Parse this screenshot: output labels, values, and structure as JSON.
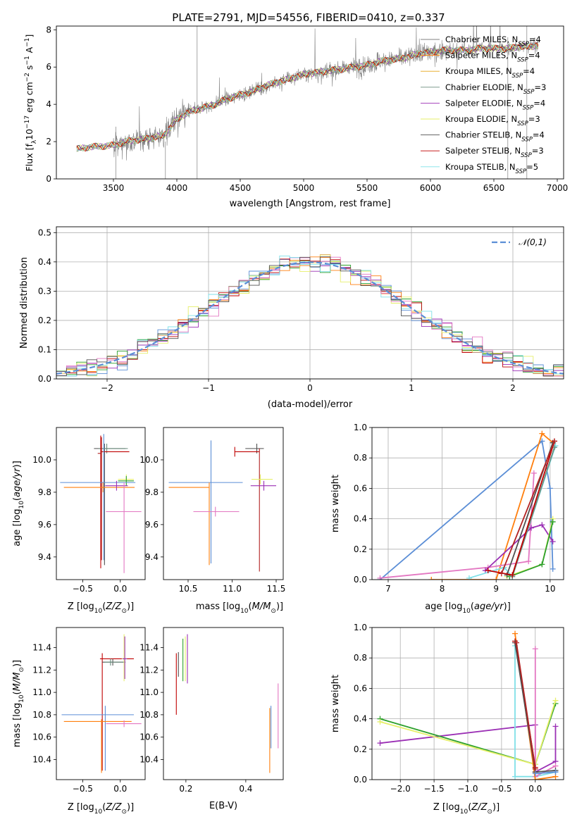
{
  "figure": {
    "title": "PLATE=2791, MJD=54556, FIBERID=0410, z=0.337"
  },
  "colors": {
    "grid": "#b0b0b0",
    "gray_spectrum": "#808080",
    "models": [
      "#808080",
      "#ff7f0e",
      "#e8a317",
      "#6b8e7f",
      "#9b30b5",
      "#e6ef6a",
      "#505050",
      "#c00000",
      "#7fe0e8",
      "#6a8fd8",
      "#e377c2",
      "#dd6a1a",
      "#b22222",
      "#2ca02c",
      "#bcbd22"
    ]
  },
  "chart_data": [
    {
      "id": "spectrum",
      "type": "line",
      "xlabel": "wavelength [Angstrom, rest frame]",
      "ylabel": "Flux [f_λ10^-17 erg cm^-2 s^-1 A^-1]",
      "xlim": [
        3050,
        7050
      ],
      "ylim": [
        0,
        8.2
      ],
      "xticks": [
        3500,
        4000,
        4500,
        5000,
        5500,
        6000,
        6500,
        7000
      ],
      "yticks": [
        0,
        2,
        4,
        6,
        8
      ],
      "grid": false,
      "legend_position": "upper-right",
      "legend": [
        {
          "label": "Chabrier MILES, N_SSP=4",
          "color": "#808080"
        },
        {
          "label": "Salpeter MILES, N_SSP=4",
          "color": "#ff7f0e"
        },
        {
          "label": "Kroupa MILES, N_SSP=4",
          "color": "#e8a317"
        },
        {
          "label": "Chabrier ELODIE, N_SSP=3",
          "color": "#6b8e7f"
        },
        {
          "label": "Salpeter ELODIE, N_SSP=4",
          "color": "#9b30b5"
        },
        {
          "label": "Kroupa ELODIE, N_SSP=3",
          "color": "#e6ef6a"
        },
        {
          "label": "Chabrier STELIB, N_SSP=4",
          "color": "#505050"
        },
        {
          "label": "Salpeter STELIB, N_SSP=3",
          "color": "#c00000"
        },
        {
          "label": "Kroupa STELIB, N_SSP=5",
          "color": "#7fe0e8"
        }
      ],
      "continuum": {
        "x": [
          3210,
          3300,
          3400,
          3500,
          3600,
          3700,
          3800,
          3900,
          4000,
          4100,
          4200,
          4300,
          4400,
          4500,
          4600,
          4700,
          4800,
          4900,
          5000,
          5100,
          5200,
          5300,
          5400,
          5500,
          5600,
          5700,
          5800,
          5900,
          6000,
          6100,
          6200,
          6300,
          6400,
          6500,
          6600,
          6700,
          6800,
          6850
        ],
        "y": [
          1.6,
          1.7,
          1.75,
          1.8,
          2.0,
          2.1,
          2.2,
          2.35,
          3.2,
          3.6,
          3.8,
          4.0,
          4.3,
          4.5,
          4.7,
          5.0,
          5.2,
          5.4,
          5.6,
          5.7,
          5.8,
          5.9,
          6.0,
          6.1,
          6.3,
          6.4,
          6.5,
          6.7,
          6.8,
          6.9,
          6.9,
          6.9,
          7.0,
          7.0,
          7.0,
          7.1,
          7.1,
          7.2
        ]
      }
    },
    {
      "id": "residuals",
      "type": "line",
      "xlabel": "(data-model)/error",
      "ylabel": "Normed distribution",
      "xlim": [
        -2.5,
        2.5
      ],
      "ylim": [
        0,
        0.52
      ],
      "xticks": [
        -2,
        -1,
        0,
        1,
        2
      ],
      "yticks": [
        0.0,
        0.1,
        0.2,
        0.3,
        0.4,
        0.5
      ],
      "grid": true,
      "legend_position": "upper-right",
      "legend": [
        {
          "label": "𝒩(0,1)",
          "color": "#5b8ed6"
        }
      ],
      "bin_width": 0.1
    },
    {
      "id": "age-vs-Z",
      "type": "scatter",
      "xlabel": "Z [log10(Z/Z☉)]",
      "ylabel": "age [log10(age/yr)]",
      "xlim": [
        -0.85,
        0.33
      ],
      "ylim": [
        9.26,
        10.2
      ],
      "xticks": [
        -0.5,
        0.0
      ],
      "yticks": [
        9.4,
        9.6,
        9.8,
        10.0
      ],
      "grid": false,
      "points": [
        {
          "x": -0.21,
          "y": 10.07,
          "xlo": 0.14,
          "xhi": 0.28,
          "ylo": 0.72,
          "yhi": 0.03,
          "c": "#505050"
        },
        {
          "x": -0.18,
          "y": 10.07,
          "xlo": 0.11,
          "xhi": 0.28,
          "ylo": 0.03,
          "yhi": 0.03,
          "c": "#6b8e7f"
        },
        {
          "x": -0.26,
          "y": 10.05,
          "xlo": 0.0,
          "xhi": 0.38,
          "ylo": 0.72,
          "yhi": 0.1,
          "c": "#c00000"
        },
        {
          "x": -0.25,
          "y": 10.04,
          "xlo": 0.05,
          "xhi": 0.0,
          "ylo": 0.66,
          "yhi": 0.1,
          "c": "#b22222"
        },
        {
          "x": 0.08,
          "y": 9.88,
          "xlo": 0.11,
          "xhi": 0.1,
          "ylo": 0.03,
          "yhi": 0.03,
          "c": "#e6ef6a"
        },
        {
          "x": 0.08,
          "y": 9.87,
          "xlo": 0.11,
          "xhi": 0.1,
          "ylo": 0.03,
          "yhi": 0.03,
          "c": "#2ca02c"
        },
        {
          "x": -0.22,
          "y": 9.86,
          "xlo": 0.58,
          "xhi": 0.42,
          "ylo": 0.48,
          "yhi": 0.3,
          "c": "#5b8ed6"
        },
        {
          "x": -0.23,
          "y": 9.83,
          "xlo": 0.52,
          "xhi": 0.42,
          "ylo": 0.03,
          "yhi": 0.03,
          "c": "#ff7f0e"
        },
        {
          "x": -0.05,
          "y": 9.84,
          "xlo": 0.15,
          "xhi": 0.15,
          "ylo": 0.03,
          "yhi": 0.03,
          "c": "#9b30b5"
        },
        {
          "x": 0.05,
          "y": 9.68,
          "xlo": 0.24,
          "xhi": 0.23,
          "ylo": 0.38,
          "yhi": 0.18,
          "c": "#e377c2"
        }
      ]
    },
    {
      "id": "age-vs-mass",
      "type": "scatter",
      "xlabel": "mass [log10(M/M☉)]",
      "ylabel": "",
      "xlim": [
        10.22,
        11.58
      ],
      "ylim": [
        9.26,
        10.2
      ],
      "xticks": [
        10.5,
        11.0,
        11.5
      ],
      "yticks": [
        9.4,
        9.6,
        9.8,
        10.0
      ],
      "grid": false,
      "points": [
        {
          "x": 11.28,
          "y": 10.07,
          "xlo": 0.13,
          "xhi": 0.08,
          "ylo": 0.03,
          "yhi": 0.03,
          "c": "#505050"
        },
        {
          "x": 11.03,
          "y": 10.05,
          "xlo": 0.0,
          "xhi": 0.28,
          "ylo": 0.03,
          "yhi": 0.03,
          "c": "#c00000"
        },
        {
          "x": 11.31,
          "y": 10.04,
          "xlo": 0.0,
          "xhi": 0.0,
          "ylo": 0.73,
          "yhi": 0.03,
          "c": "#b22222"
        },
        {
          "x": 11.32,
          "y": 9.88,
          "xlo": 0.1,
          "xhi": 0.14,
          "ylo": 0.03,
          "yhi": 0.03,
          "c": "#e6ef6a"
        },
        {
          "x": 11.36,
          "y": 9.84,
          "xlo": 0.15,
          "xhi": 0.14,
          "ylo": 0.03,
          "yhi": 0.03,
          "c": "#9b30b5"
        },
        {
          "x": 10.76,
          "y": 9.86,
          "xlo": 0.48,
          "xhi": 0.36,
          "ylo": 0.5,
          "yhi": 0.26,
          "c": "#5b8ed6"
        },
        {
          "x": 10.74,
          "y": 9.83,
          "xlo": 0.46,
          "xhi": 0.0,
          "ylo": 0.48,
          "yhi": 0.03,
          "c": "#ff7f0e"
        },
        {
          "x": 10.81,
          "y": 9.68,
          "xlo": 0.25,
          "xhi": 0.27,
          "ylo": 0.03,
          "yhi": 0.03,
          "c": "#e377c2"
        }
      ]
    },
    {
      "id": "weight-vs-age",
      "type": "line",
      "xlabel": "age [log10(age/yr)]",
      "ylabel": "mass weight",
      "xlim": [
        6.7,
        10.25
      ],
      "ylim": [
        0,
        1.0
      ],
      "xticks": [
        7,
        8,
        9,
        10
      ],
      "yticks": [
        0.0,
        0.2,
        0.4,
        0.6,
        0.8,
        1.0
      ],
      "grid": true,
      "series": [
        {
          "c": "#5b8ed6",
          "x": [
            6.85,
            9.85,
            10.0,
            10.05
          ],
          "y": [
            0.0,
            0.91,
            0.6,
            0.07
          ]
        },
        {
          "c": "#ff7f0e",
          "x": [
            7.8,
            9.0,
            9.85,
            10.05
          ],
          "y": [
            0.0,
            0.0,
            0.96,
            0.9
          ]
        },
        {
          "c": "#e377c2",
          "x": [
            6.85,
            8.85,
            9.6,
            9.7
          ],
          "y": [
            0.01,
            0.08,
            0.12,
            0.7
          ]
        },
        {
          "c": "#9b30b5",
          "x": [
            8.8,
            9.65,
            9.85,
            10.05
          ],
          "y": [
            0.06,
            0.34,
            0.36,
            0.25
          ]
        },
        {
          "c": "#e6ef6a",
          "x": [
            9.2,
            9.85,
            10.05
          ],
          "y": [
            0.02,
            0.1,
            0.4
          ]
        },
        {
          "c": "#2ca02c",
          "x": [
            9.25,
            9.85,
            10.05
          ],
          "y": [
            0.02,
            0.1,
            0.38
          ]
        },
        {
          "c": "#7fe0e8",
          "x": [
            8.5,
            9.15,
            9.3,
            10.1
          ],
          "y": [
            0.01,
            0.08,
            0.02,
            0.88
          ]
        },
        {
          "c": "#6b8e7f",
          "x": [
            9.3,
            10.08
          ],
          "y": [
            0.02,
            0.87
          ]
        },
        {
          "c": "#505050",
          "x": [
            9.2,
            10.05
          ],
          "y": [
            0.03,
            0.9
          ]
        },
        {
          "c": "#c00000",
          "x": [
            8.85,
            9.3,
            10.08
          ],
          "y": [
            0.06,
            0.03,
            0.91
          ]
        },
        {
          "c": "#b22222",
          "x": [
            9.1,
            10.08
          ],
          "y": [
            0.04,
            0.91
          ]
        }
      ]
    },
    {
      "id": "mass-vs-Z",
      "type": "scatter",
      "xlabel": "Z [log10(Z/Z☉)]",
      "ylabel": "mass [log10(M/M☉)]",
      "xlim": [
        -0.85,
        0.33
      ],
      "ylim": [
        10.22,
        11.58
      ],
      "xticks": [
        -0.5,
        0.0
      ],
      "yticks": [
        10.4,
        10.6,
        10.8,
        11.0,
        11.2,
        11.4
      ],
      "grid": false,
      "points": [
        {
          "x": -0.24,
          "y": 11.3,
          "xlo": 0.03,
          "xhi": 0.42,
          "ylo": 1.0,
          "yhi": 0.05,
          "c": "#c00000"
        },
        {
          "x": -0.1,
          "y": 11.27,
          "xlo": 0.14,
          "xhi": 0.14,
          "ylo": 0.03,
          "yhi": 0.03,
          "c": "#505050"
        },
        {
          "x": -0.13,
          "y": 11.27,
          "xlo": 0.08,
          "xhi": 0.2,
          "ylo": 0.03,
          "yhi": 0.03,
          "c": "#6b8e7f"
        },
        {
          "x": 0.05,
          "y": 11.3,
          "xlo": 0.03,
          "xhi": 0.03,
          "ylo": 0.2,
          "yhi": 0.22,
          "c": "#e6ef6a"
        },
        {
          "x": 0.06,
          "y": 11.3,
          "xlo": 0.03,
          "xhi": 0.03,
          "ylo": 0.18,
          "yhi": 0.2,
          "c": "#9b30b5"
        },
        {
          "x": -0.2,
          "y": 10.8,
          "xlo": 0.58,
          "xhi": 0.38,
          "ylo": 0.5,
          "yhi": 0.08,
          "c": "#5b8ed6"
        },
        {
          "x": -0.25,
          "y": 10.74,
          "xlo": 0.5,
          "xhi": 0.4,
          "ylo": 0.46,
          "yhi": 0.02,
          "c": "#ff7f0e"
        },
        {
          "x": 0.05,
          "y": 10.72,
          "xlo": 0.24,
          "xhi": 0.23,
          "ylo": 0.03,
          "yhi": 0.03,
          "c": "#e377c2"
        }
      ]
    },
    {
      "id": "mass-vs-ebv",
      "type": "scatter",
      "xlabel": "E(B-V)",
      "ylabel": "",
      "xlim": [
        0.125,
        0.525
      ],
      "ylim": [
        10.22,
        11.58
      ],
      "xticks": [
        0.2,
        0.4
      ],
      "yticks": [
        10.4,
        10.6,
        10.8,
        11.0,
        11.2,
        11.4
      ],
      "grid": false,
      "vlines": [
        {
          "x": 0.168,
          "lo": 10.8,
          "hi": 11.35,
          "c": "#c00000"
        },
        {
          "x": 0.175,
          "lo": 11.14,
          "hi": 11.36,
          "c": "#505050"
        },
        {
          "x": 0.19,
          "lo": 11.1,
          "hi": 11.48,
          "c": "#2ca02c"
        },
        {
          "x": 0.198,
          "lo": 11.1,
          "hi": 11.5,
          "c": "#e6ef6a"
        },
        {
          "x": 0.205,
          "lo": 11.08,
          "hi": 11.52,
          "c": "#9b30b5"
        },
        {
          "x": 0.48,
          "lo": 10.28,
          "hi": 10.86,
          "c": "#ff7f0e"
        },
        {
          "x": 0.484,
          "lo": 10.5,
          "hi": 10.88,
          "c": "#5b8ed6"
        },
        {
          "x": 0.508,
          "lo": 10.5,
          "hi": 11.08,
          "c": "#e377c2"
        }
      ]
    },
    {
      "id": "weight-vs-Z",
      "type": "line",
      "xlabel": "Z [log10(Z/Z☉)]",
      "ylabel": "mass weight",
      "xlim": [
        -2.42,
        0.42
      ],
      "ylim": [
        0,
        1.0
      ],
      "xticks": [
        -2.0,
        -1.5,
        -1.0,
        -0.5,
        0.0
      ],
      "yticks": [
        0.0,
        0.2,
        0.4,
        0.6,
        0.8,
        1.0
      ],
      "grid": true,
      "series": [
        {
          "c": "#9b30b5",
          "x": [
            -2.3,
            0.0,
            0.0,
            0.3,
            0.3
          ],
          "y": [
            0.24,
            0.36,
            0.05,
            0.12,
            0.35
          ]
        },
        {
          "c": "#2ca02c",
          "x": [
            -2.3,
            0.0,
            0.3
          ],
          "y": [
            0.4,
            0.1,
            0.5
          ]
        },
        {
          "c": "#e6ef6a",
          "x": [
            -2.3,
            0.0,
            0.3
          ],
          "y": [
            0.38,
            0.1,
            0.52
          ]
        },
        {
          "c": "#7fe0e8",
          "x": [
            -0.3,
            -0.3,
            0.0,
            0.3
          ],
          "y": [
            0.88,
            0.02,
            0.02,
            0.05
          ]
        },
        {
          "c": "#e377c2",
          "x": [
            0.0,
            0.0,
            0.3
          ],
          "y": [
            0.86,
            0.02,
            0.09
          ]
        },
        {
          "c": "#ff7f0e",
          "x": [
            -0.3,
            0.0,
            0.3
          ],
          "y": [
            0.96,
            0.0,
            0.02
          ]
        },
        {
          "c": "#c00000",
          "x": [
            -0.3,
            0.0
          ],
          "y": [
            0.91,
            0.08
          ]
        },
        {
          "c": "#505050",
          "x": [
            -0.3,
            0.0,
            0.3
          ],
          "y": [
            0.9,
            0.05,
            0.06
          ]
        },
        {
          "c": "#b22222",
          "x": [
            -0.28,
            0.0
          ],
          "y": [
            0.9,
            0.07
          ]
        },
        {
          "c": "#5b8ed6",
          "x": [
            0.0,
            0.3
          ],
          "y": [
            0.04,
            0.05
          ]
        }
      ]
    }
  ]
}
